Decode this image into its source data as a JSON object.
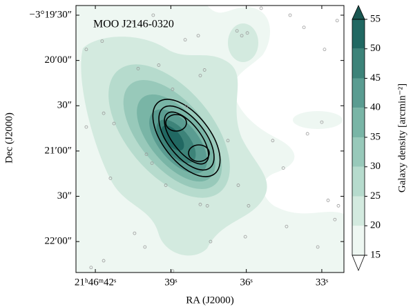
{
  "chart_data": {
    "type": "contour",
    "title": "MOO J2146-0320",
    "x_label": "RA (J2000)",
    "y_label": "Dec (J2000)",
    "xlim": [
      42.77,
      32.12
    ],
    "xticks": [
      {
        "value": 42,
        "label": "21ʰ46ᵐ42ˢ"
      },
      {
        "value": 39,
        "label": "39ˢ"
      },
      {
        "value": 36,
        "label": "36ˢ"
      },
      {
        "value": 33,
        "label": "33ˢ"
      }
    ],
    "ylim": [
      -12140.5,
      -11963.6
    ],
    "yticks": [
      {
        "value": -11970,
        "label": "−3°19′30″"
      },
      {
        "value": -12000,
        "label": "20′00″"
      },
      {
        "value": -12030,
        "label": "30″"
      },
      {
        "value": -12060,
        "label": "21′00″"
      },
      {
        "value": -12090,
        "label": "30″"
      },
      {
        "value": -12120,
        "label": "22′00″"
      }
    ],
    "points": {
      "color": "#9a9a9a",
      "x": [
        42.36,
        41.73,
        40.52,
        39.7,
        38.43,
        37.91,
        36.37,
        36.18,
        35.96,
        35.41,
        34.26,
        33.71,
        32.89,
        32.39,
        40.3,
        39.48,
        37.83,
        37.66,
        41.67,
        41.26,
        39.97,
        39.75,
        41.4,
        39.2,
        37.83,
        37.55,
        36.32,
        35.91,
        34.95,
        34.53,
        33.57,
        33.0,
        32.75,
        32.34,
        40.44,
        40.03,
        41.67,
        38.93,
        37.42,
        36.04,
        34.4,
        33.16,
        32.48,
        42.17,
        42.36,
        38.38,
        36.73,
        38.93
      ],
      "y": [
        -11992.7,
        -11987.2,
        -11974.5,
        -11970.0,
        -11986.3,
        -11983.6,
        -11980.4,
        -11983.6,
        -11981.8,
        -11965.4,
        -11970.0,
        -11978.1,
        -11992.7,
        -11973.6,
        -12005.4,
        -12003.1,
        -12010.0,
        -12006.3,
        -12035.0,
        -12041.8,
        -12062.2,
        -12068.1,
        -12078.1,
        -12082.7,
        -12095.4,
        -12096.3,
        -12082.7,
        -12096.3,
        -12053.1,
        -12071.3,
        -12048.6,
        -12040.9,
        -12092.7,
        -12096.3,
        -12114.5,
        -12123.6,
        -12132.7,
        -12139.5,
        -12120.0,
        -12116.8,
        -12110.0,
        -12123.6,
        -12105.4,
        -12137.2,
        -12044.1,
        -12030.4,
        -12053.1,
        -12019.1
      ]
    },
    "colorbar": {
      "label": "Galaxy density [arcmin⁻²]",
      "lim": [
        15,
        55
      ],
      "ticks": [
        15,
        20,
        25,
        30,
        35,
        40,
        45,
        50,
        55
      ],
      "colors": [
        "#eef7f2",
        "#d3eadf",
        "#b6dbcd",
        "#98c9ba",
        "#79b5a6",
        "#5a9c91",
        "#3d8379",
        "#216862"
      ],
      "extend_colors": [
        "#ffffff",
        "#1a5752"
      ]
    }
  }
}
